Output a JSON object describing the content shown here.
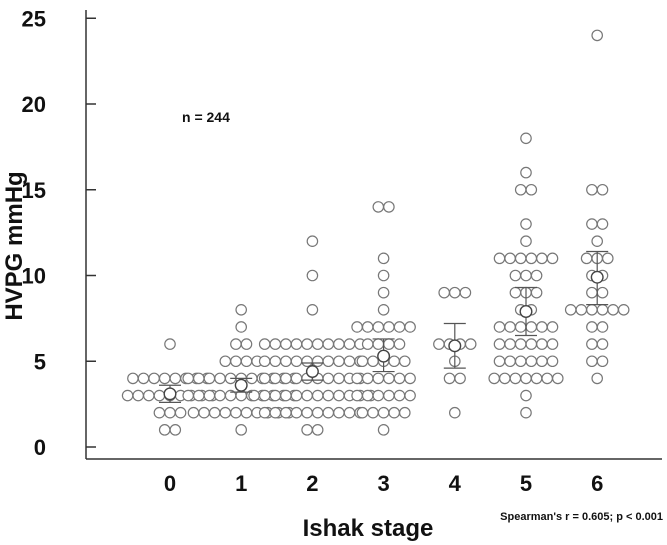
{
  "chart_data": {
    "type": "scatter",
    "xlabel": "Ishak stage",
    "ylabel": "HVPG mmHg",
    "ylim": [
      0,
      25
    ],
    "yticks": [
      0,
      5,
      10,
      15,
      20,
      25
    ],
    "categories": [
      "0",
      "1",
      "2",
      "3",
      "4",
      "5",
      "6"
    ],
    "grid": false,
    "annotations": {
      "n": "n = 244",
      "stat": "Spearman's r = 0.605; p < 0.001"
    },
    "colors": {
      "marker_stroke": "#777777",
      "axis": "#333333",
      "errorbar": "#555555"
    },
    "groups": [
      {
        "stage": "0",
        "mean": 3.1,
        "lower": 2.6,
        "upper": 3.6,
        "points": [
          1,
          1,
          2,
          2,
          2,
          3,
          3,
          3,
          3,
          3,
          3,
          3,
          3,
          3,
          4,
          4,
          4,
          4,
          4,
          4,
          4,
          4,
          6
        ]
      },
      {
        "stage": "1",
        "mean": 3.6,
        "lower": 3.2,
        "upper": 4.0,
        "points": [
          1,
          2,
          2,
          2,
          2,
          2,
          2,
          2,
          2,
          2,
          2,
          3,
          3,
          3,
          3,
          3,
          3,
          3,
          3,
          3,
          3,
          3,
          4,
          4,
          4,
          4,
          4,
          4,
          4,
          4,
          4,
          4,
          4,
          5,
          5,
          5,
          5,
          6,
          6,
          7,
          8
        ]
      },
      {
        "stage": "2",
        "mean": 4.4,
        "lower": 3.9,
        "upper": 4.9,
        "points": [
          1,
          1,
          2,
          2,
          2,
          2,
          2,
          2,
          2,
          2,
          2,
          2,
          3,
          3,
          3,
          3,
          3,
          3,
          3,
          3,
          3,
          3,
          3,
          3,
          4,
          4,
          4,
          4,
          4,
          4,
          4,
          4,
          4,
          4,
          5,
          5,
          5,
          5,
          5,
          5,
          5,
          5,
          5,
          5,
          6,
          6,
          6,
          6,
          6,
          6,
          6,
          6,
          6,
          6,
          8,
          10,
          12
        ]
      },
      {
        "stage": "3",
        "mean": 5.3,
        "lower": 4.4,
        "upper": 6.3,
        "points": [
          1,
          2,
          2,
          2,
          2,
          2,
          3,
          3,
          3,
          3,
          3,
          3,
          4,
          4,
          4,
          4,
          4,
          4,
          5,
          5,
          5,
          5,
          5,
          6,
          6,
          6,
          6,
          7,
          7,
          7,
          7,
          7,
          7,
          8,
          9,
          10,
          11,
          14,
          14
        ]
      },
      {
        "stage": "4",
        "mean": 5.9,
        "lower": 4.6,
        "upper": 7.2,
        "points": [
          2,
          4,
          4,
          5,
          6,
          6,
          6,
          6,
          9,
          9,
          9
        ]
      },
      {
        "stage": "5",
        "mean": 7.9,
        "lower": 6.5,
        "upper": 9.3,
        "points": [
          2,
          3,
          4,
          4,
          4,
          4,
          4,
          4,
          4,
          5,
          5,
          5,
          5,
          5,
          5,
          6,
          6,
          6,
          6,
          6,
          6,
          7,
          7,
          7,
          7,
          7,
          7,
          8,
          8,
          9,
          9,
          9,
          10,
          10,
          10,
          11,
          11,
          11,
          11,
          11,
          11,
          12,
          13,
          15,
          15,
          16,
          18
        ]
      },
      {
        "stage": "6",
        "mean": 9.9,
        "lower": 8.3,
        "upper": 11.4,
        "points": [
          4,
          5,
          5,
          6,
          6,
          7,
          7,
          8,
          8,
          8,
          8,
          8,
          8,
          9,
          9,
          10,
          10,
          11,
          11,
          11,
          12,
          13,
          13,
          15,
          15,
          24
        ]
      }
    ]
  }
}
